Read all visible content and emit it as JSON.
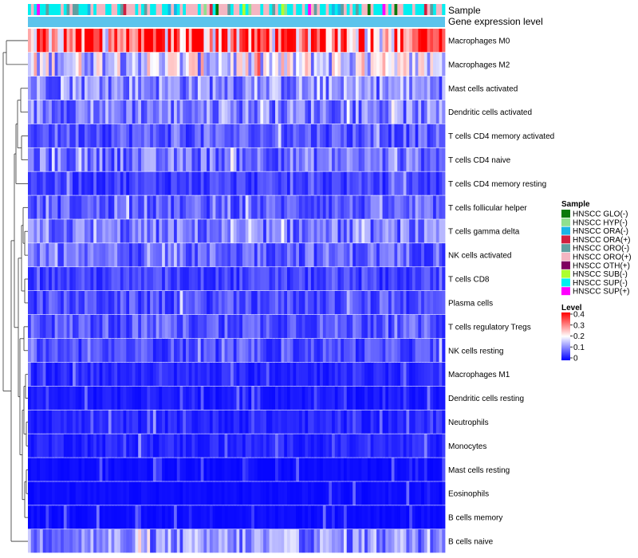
{
  "chart_data": {
    "type": "heatmap",
    "title": "",
    "annotation_tracks": [
      "Sample",
      "Gene expression level"
    ],
    "rows": [
      "Macrophages M0",
      "Macrophages M2",
      "Mast cells activated",
      "Dendritic cells activated",
      "T cells CD4 memory activated",
      "T cells CD4 naive",
      "T cells CD4 memory resting",
      "T cells follicular helper",
      "T cells gamma delta",
      "NK cells activated",
      "T cells CD8",
      "Plasma cells",
      "T cells regulatory  Tregs",
      "NK cells resting",
      "Macrophages M1",
      "Dendritic cells resting",
      "Neutrophils",
      "Monocytes",
      "Mast cells resting",
      "Eosinophils",
      "B cells memory",
      "B cells naive"
    ],
    "row_mean_levels": [
      0.33,
      0.17,
      0.11,
      0.1,
      0.07,
      0.09,
      0.05,
      0.07,
      0.09,
      0.08,
      0.05,
      0.06,
      0.07,
      0.06,
      0.03,
      0.02,
      0.03,
      0.03,
      0.01,
      0.01,
      0.01,
      0.11
    ],
    "n_samples": 140,
    "sample_legend": {
      "title": "Sample",
      "entries": [
        {
          "label": "HNSCC GLO(-)",
          "color": "#0a7a0a"
        },
        {
          "label": "HNSCC HYP(-)",
          "color": "#8fe08f"
        },
        {
          "label": "HNSCC ORA(-)",
          "color": "#19b4e6"
        },
        {
          "label": "HNSCC ORA(+)",
          "color": "#d11f3f"
        },
        {
          "label": "HNSCC ORO(-)",
          "color": "#5f9ea0"
        },
        {
          "label": "HNSCC ORO(+)",
          "color": "#f4b6c2"
        },
        {
          "label": "HNSCC OTH(+)",
          "color": "#800060"
        },
        {
          "label": "HNSCC SUB(-)",
          "color": "#adff2f"
        },
        {
          "label": "HNSCC SUP(-)",
          "color": "#00f0f0"
        },
        {
          "label": "HNSCC SUP(+)",
          "color": "#ff00ff"
        }
      ],
      "sample_track_weights": [
        0.01,
        0.02,
        0.08,
        0.05,
        0.07,
        0.33,
        0.005,
        0.015,
        0.33,
        0.02
      ]
    },
    "level_legend": {
      "title": "Level",
      "ticks": [
        "0.4",
        "0.3",
        "0.2",
        "0.1",
        "0"
      ],
      "range": [
        0,
        0.4
      ],
      "colors": {
        "low": "#0000ff",
        "mid": "#ffffff",
        "high": "#ff0000"
      }
    },
    "expression_track_color": "#5bc4ec"
  }
}
